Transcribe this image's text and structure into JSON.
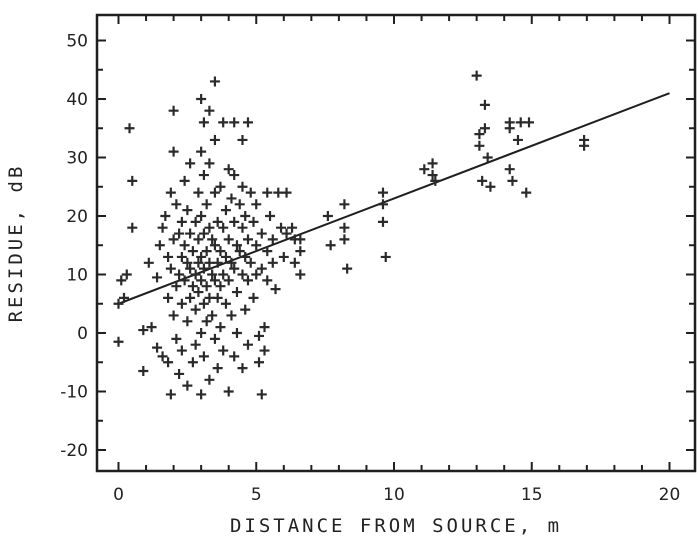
{
  "chart_data": {
    "type": "scatter",
    "xlabel": "DISTANCE FROM SOURCE, m",
    "ylabel": "RESIDUE, dB",
    "xlim": [
      -1,
      21
    ],
    "ylim": [
      -24,
      54
    ],
    "x_ticks": [
      0,
      5,
      10,
      15,
      20
    ],
    "y_ticks": [
      -20,
      -10,
      0,
      10,
      20,
      30,
      40,
      50
    ],
    "grid": false,
    "marker": "+",
    "series": [
      {
        "values": [
          [
            0.0,
            -1.5
          ],
          [
            0.0,
            5.0
          ],
          [
            0.1,
            9.0
          ],
          [
            0.2,
            6.0
          ],
          [
            0.3,
            10.0
          ],
          [
            0.4,
            35.0
          ],
          [
            0.5,
            26.0
          ],
          [
            0.5,
            18.0
          ],
          [
            0.9,
            0.5
          ],
          [
            0.9,
            -6.5
          ],
          [
            1.1,
            12.0
          ],
          [
            1.2,
            1.0
          ],
          [
            1.4,
            -2.5
          ],
          [
            1.4,
            9.5
          ],
          [
            1.5,
            15.0
          ],
          [
            1.6,
            18.0
          ],
          [
            1.6,
            -4.0
          ],
          [
            1.7,
            20.0
          ],
          [
            1.8,
            13.0
          ],
          [
            1.8,
            6.0
          ],
          [
            1.8,
            -5.0
          ],
          [
            1.9,
            24.0
          ],
          [
            1.9,
            11.0
          ],
          [
            1.9,
            -10.5
          ],
          [
            2.0,
            38.0
          ],
          [
            2.0,
            31.0
          ],
          [
            2.0,
            16.0
          ],
          [
            2.0,
            3.0
          ],
          [
            2.1,
            22.0
          ],
          [
            2.1,
            8.0
          ],
          [
            2.1,
            -1.0
          ],
          [
            2.2,
            17.0
          ],
          [
            2.2,
            10.0
          ],
          [
            2.2,
            -7.0
          ],
          [
            2.3,
            19.0
          ],
          [
            2.3,
            13.0
          ],
          [
            2.3,
            5.0
          ],
          [
            2.3,
            -3.0
          ],
          [
            2.4,
            26.0
          ],
          [
            2.4,
            15.0
          ],
          [
            2.4,
            9.0
          ],
          [
            2.5,
            21.0
          ],
          [
            2.5,
            12.0
          ],
          [
            2.5,
            2.0
          ],
          [
            2.5,
            -9.0
          ],
          [
            2.6,
            29.0
          ],
          [
            2.6,
            17.0
          ],
          [
            2.6,
            11.0
          ],
          [
            2.6,
            6.0
          ],
          [
            2.7,
            14.0
          ],
          [
            2.7,
            8.0
          ],
          [
            2.7,
            -5.0
          ],
          [
            2.8,
            19.0
          ],
          [
            2.8,
            10.0
          ],
          [
            2.8,
            4.0
          ],
          [
            2.8,
            -2.0
          ],
          [
            2.9,
            24.0
          ],
          [
            2.9,
            16.0
          ],
          [
            2.9,
            12.0
          ],
          [
            2.9,
            7.0
          ],
          [
            3.0,
            40.0
          ],
          [
            3.0,
            31.0
          ],
          [
            3.0,
            20.0
          ],
          [
            3.0,
            13.0
          ],
          [
            3.0,
            9.0
          ],
          [
            3.0,
            0.0
          ],
          [
            3.0,
            -10.5
          ],
          [
            3.1,
            36.0
          ],
          [
            3.1,
            27.0
          ],
          [
            3.1,
            17.0
          ],
          [
            3.1,
            11.0
          ],
          [
            3.1,
            5.0
          ],
          [
            3.1,
            -4.0
          ],
          [
            3.2,
            22.0
          ],
          [
            3.2,
            14.0
          ],
          [
            3.2,
            8.0
          ],
          [
            3.2,
            2.0
          ],
          [
            3.3,
            38.0
          ],
          [
            3.3,
            29.0
          ],
          [
            3.3,
            18.0
          ],
          [
            3.3,
            12.0
          ],
          [
            3.3,
            6.0
          ],
          [
            3.3,
            -8.0
          ],
          [
            3.4,
            16.0
          ],
          [
            3.4,
            10.0
          ],
          [
            3.4,
            3.0
          ],
          [
            3.5,
            43.0
          ],
          [
            3.5,
            33.0
          ],
          [
            3.5,
            24.0
          ],
          [
            3.5,
            15.0
          ],
          [
            3.5,
            9.0
          ],
          [
            3.5,
            -1.0
          ],
          [
            3.6,
            19.0
          ],
          [
            3.6,
            12.0
          ],
          [
            3.6,
            6.0
          ],
          [
            3.6,
            -6.0
          ],
          [
            3.7,
            25.0
          ],
          [
            3.7,
            14.0
          ],
          [
            3.7,
            8.0
          ],
          [
            3.7,
            1.0
          ],
          [
            3.8,
            36.0
          ],
          [
            3.8,
            18.0
          ],
          [
            3.8,
            10.0
          ],
          [
            3.8,
            -3.0
          ],
          [
            3.9,
            21.0
          ],
          [
            3.9,
            13.0
          ],
          [
            3.9,
            5.0
          ],
          [
            4.0,
            28.0
          ],
          [
            4.0,
            16.0
          ],
          [
            4.0,
            9.0
          ],
          [
            4.0,
            -10.0
          ],
          [
            4.1,
            23.0
          ],
          [
            4.1,
            12.0
          ],
          [
            4.1,
            3.0
          ],
          [
            4.2,
            36.0
          ],
          [
            4.2,
            27.0
          ],
          [
            4.2,
            19.0
          ],
          [
            4.2,
            11.0
          ],
          [
            4.2,
            -4.0
          ],
          [
            4.3,
            15.0
          ],
          [
            4.3,
            7.0
          ],
          [
            4.3,
            0.0
          ],
          [
            4.4,
            22.0
          ],
          [
            4.4,
            14.0
          ],
          [
            4.5,
            33.0
          ],
          [
            4.5,
            25.0
          ],
          [
            4.5,
            18.0
          ],
          [
            4.5,
            10.0
          ],
          [
            4.5,
            -6.0
          ],
          [
            4.6,
            20.0
          ],
          [
            4.6,
            13.0
          ],
          [
            4.6,
            4.0
          ],
          [
            4.7,
            36.0
          ],
          [
            4.7,
            16.0
          ],
          [
            4.7,
            9.0
          ],
          [
            4.7,
            -2.0
          ],
          [
            4.8,
            24.0
          ],
          [
            4.8,
            12.0
          ],
          [
            4.9,
            19.0
          ],
          [
            4.9,
            6.0
          ],
          [
            5.0,
            22.0
          ],
          [
            5.0,
            15.0
          ],
          [
            5.0,
            10.0
          ],
          [
            5.1,
            -0.5
          ],
          [
            5.1,
            -5.0
          ],
          [
            5.2,
            -10.5
          ],
          [
            5.2,
            17.0
          ],
          [
            5.2,
            11.0
          ],
          [
            5.3,
            1.0
          ],
          [
            5.3,
            -3.0
          ],
          [
            5.4,
            24.0
          ],
          [
            5.4,
            14.0
          ],
          [
            5.4,
            9.0
          ],
          [
            5.5,
            20.0
          ],
          [
            5.6,
            12.0
          ],
          [
            5.6,
            16.0
          ],
          [
            5.7,
            7.5
          ],
          [
            5.8,
            24.0
          ],
          [
            5.9,
            18.0
          ],
          [
            6.0,
            13.0
          ],
          [
            6.1,
            17.0
          ],
          [
            6.1,
            24.0
          ],
          [
            6.3,
            18.0
          ],
          [
            6.4,
            16.0
          ],
          [
            6.4,
            12.0
          ],
          [
            6.6,
            10.0
          ],
          [
            6.6,
            14.0
          ],
          [
            6.6,
            16.0
          ],
          [
            7.6,
            20.0
          ],
          [
            7.7,
            15.0
          ],
          [
            8.2,
            22.0
          ],
          [
            8.2,
            18.0
          ],
          [
            8.2,
            16.0
          ],
          [
            8.3,
            11.0
          ],
          [
            9.6,
            24.0
          ],
          [
            9.6,
            22.0
          ],
          [
            9.6,
            19.0
          ],
          [
            9.7,
            13.0
          ],
          [
            11.1,
            28.0
          ],
          [
            11.4,
            27.0
          ],
          [
            11.4,
            29.0
          ],
          [
            11.5,
            26.0
          ],
          [
            13.0,
            44.0
          ],
          [
            13.1,
            32.0
          ],
          [
            13.1,
            34.0
          ],
          [
            13.2,
            26.0
          ],
          [
            13.3,
            39.0
          ],
          [
            13.3,
            35.0
          ],
          [
            13.4,
            30.0
          ],
          [
            13.5,
            25.0
          ],
          [
            14.2,
            36.0
          ],
          [
            14.2,
            35.0
          ],
          [
            14.2,
            28.0
          ],
          [
            14.3,
            26.0
          ],
          [
            14.5,
            33.0
          ],
          [
            14.6,
            36.0
          ],
          [
            14.8,
            24.0
          ],
          [
            14.9,
            36.0
          ],
          [
            16.9,
            32.0
          ],
          [
            16.9,
            33.0
          ]
        ]
      }
    ],
    "fit_line": {
      "x": [
        0,
        20
      ],
      "y": [
        5,
        41
      ]
    }
  }
}
